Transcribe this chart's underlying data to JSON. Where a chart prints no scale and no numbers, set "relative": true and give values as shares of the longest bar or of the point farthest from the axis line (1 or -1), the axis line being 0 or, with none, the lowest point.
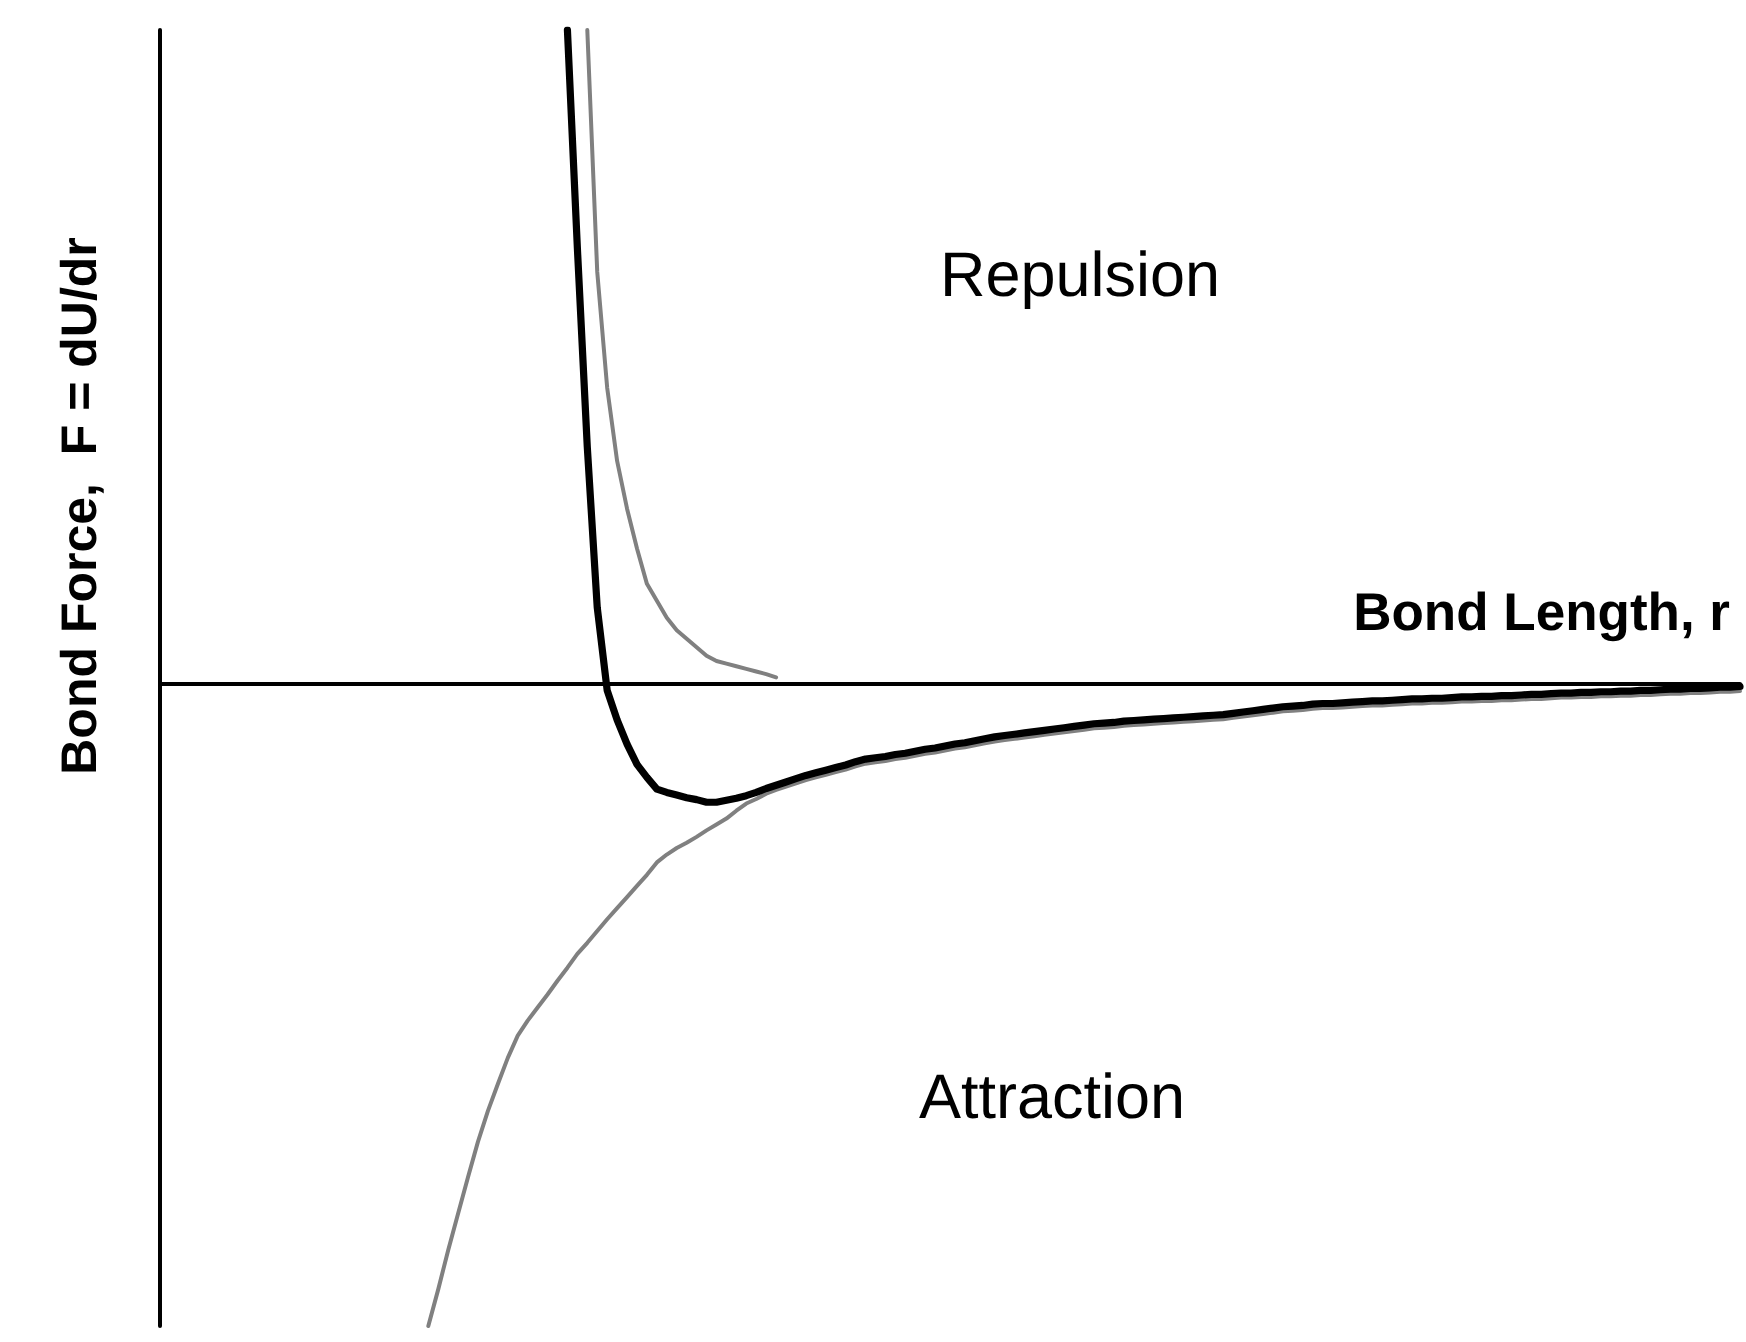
{
  "chart_data": {
    "type": "line",
    "relative": true,
    "xlabel": "Bond Length, r",
    "ylabel": "Bond Force,  F = dU/dr",
    "annotations": [
      "Repulsion",
      "Attraction"
    ],
    "categories": [
      null,
      null,
      null,
      null,
      null,
      null,
      null,
      null,
      null,
      null,
      null,
      null,
      null,
      null,
      null,
      null,
      null,
      null,
      null,
      null,
      null,
      null,
      null,
      null,
      null,
      null,
      null,
      null,
      null,
      null,
      null,
      null,
      null,
      null,
      null,
      null,
      null,
      null,
      null,
      null,
      null,
      null,
      null,
      null,
      null,
      null,
      null,
      null,
      null,
      null,
      null,
      null,
      null,
      null,
      null,
      null,
      null,
      null,
      null,
      null,
      null,
      null,
      null,
      null,
      null,
      null,
      null,
      null,
      null,
      null,
      null,
      null,
      null,
      null,
      null,
      null,
      null,
      null,
      null,
      null,
      null,
      null,
      null,
      null,
      null,
      null,
      null,
      null,
      null,
      null,
      null,
      null,
      null,
      null,
      null,
      null,
      null,
      null,
      null,
      null,
      null,
      null,
      null,
      null,
      null,
      null,
      null,
      null,
      null,
      null,
      null,
      null,
      null,
      null,
      null,
      null,
      null,
      null,
      null,
      null,
      null,
      null,
      null,
      null,
      null,
      null,
      null,
      null,
      null,
      null,
      null,
      null,
      null,
      null,
      null,
      null,
      null,
      null,
      null,
      null,
      null,
      null,
      null,
      null,
      null,
      null,
      null,
      null,
      null,
      null,
      null,
      null,
      null,
      null,
      null,
      null,
      null,
      null,
      null,
      null
    ],
    "series": [
      {
        "color": "#808080",
        "values": [
          null,
          null,
          null,
          null,
          null,
          null,
          null,
          null,
          null,
          null,
          null,
          null,
          null,
          null,
          null,
          null,
          null,
          null,
          null,
          null,
          null,
          null,
          null,
          null,
          null,
          null,
          null,
          -0.982,
          -0.926,
          -0.866,
          -0.81,
          -0.754,
          -0.7,
          -0.653,
          -0.612,
          -0.572,
          -0.538,
          -0.515,
          -0.495,
          -0.475,
          -0.454,
          -0.434,
          -0.413,
          -0.396,
          -0.378,
          -0.36,
          -0.343,
          -0.326,
          -0.309,
          -0.292,
          -0.273,
          -0.261,
          -0.251,
          -0.243,
          -0.234,
          -0.224,
          -0.215,
          -0.206,
          -0.194,
          -0.183,
          -0.176,
          -0.168,
          -0.162,
          -0.157,
          -0.152,
          -0.147,
          -0.143,
          -0.139,
          -0.135,
          -0.131,
          -0.126,
          -0.122,
          -0.12,
          -0.118,
          -0.115,
          -0.113,
          -0.11,
          -0.107,
          -0.105,
          -0.102,
          -0.099,
          -0.097,
          -0.094,
          -0.091,
          -0.088,
          -0.086,
          -0.084,
          -0.082,
          -0.08,
          -0.078,
          -0.076,
          -0.074,
          -0.072,
          -0.07,
          -0.068,
          -0.067,
          -0.066,
          -0.064,
          -0.063,
          -0.062,
          -0.061,
          -0.06,
          -0.059,
          -0.058,
          -0.057,
          -0.056,
          -0.055,
          -0.054,
          -0.052,
          -0.05,
          -0.048,
          -0.046,
          -0.044,
          -0.042,
          -0.041,
          -0.04,
          -0.038,
          -0.037,
          -0.037,
          -0.036,
          -0.035,
          -0.034,
          -0.033,
          -0.033,
          -0.032,
          -0.031,
          -0.03,
          -0.03,
          -0.029,
          -0.029,
          -0.028,
          -0.027,
          -0.027,
          -0.026,
          -0.026,
          -0.025,
          -0.025,
          -0.024,
          -0.023,
          -0.023,
          -0.022,
          -0.021,
          -0.021,
          -0.02,
          -0.02,
          -0.019,
          -0.019,
          -0.018,
          -0.018,
          -0.017,
          -0.017,
          -0.016,
          -0.015,
          -0.015,
          -0.014,
          -0.014,
          -0.013,
          -0.012,
          -0.012,
          -0.011
        ]
      },
      {
        "color": "#808080",
        "values": [
          null,
          null,
          null,
          null,
          null,
          null,
          null,
          null,
          null,
          null,
          null,
          null,
          null,
          null,
          null,
          null,
          null,
          null,
          null,
          null,
          null,
          null,
          null,
          null,
          null,
          null,
          null,
          null,
          null,
          null,
          null,
          null,
          null,
          null,
          null,
          null,
          null,
          null,
          null,
          null,
          null,
          null,
          null,
          1,
          0.63,
          0.453,
          0.341,
          0.268,
          0.207,
          0.153,
          0.127,
          0.101,
          0.082,
          0.069,
          0.056,
          0.043,
          0.035,
          0.031,
          0.027,
          0.023,
          0.019,
          0.015,
          0.01,
          null,
          null,
          null,
          null,
          null,
          null,
          null,
          null,
          null,
          null,
          null,
          null,
          null,
          null,
          null,
          null,
          null,
          null,
          null,
          null,
          null,
          null,
          null,
          null,
          null,
          null,
          null,
          null,
          null,
          null,
          null,
          null,
          null,
          null,
          null,
          null,
          null,
          null,
          null,
          null,
          null,
          null,
          null,
          null,
          null,
          null,
          null,
          null,
          null,
          null,
          null,
          null,
          null,
          null,
          null,
          null,
          null,
          null,
          null,
          null,
          null,
          null,
          null,
          null,
          null,
          null,
          null,
          null,
          null,
          null,
          null,
          null,
          null,
          null,
          null,
          null,
          null,
          null,
          null,
          null,
          null,
          null,
          null,
          null,
          null,
          null,
          null,
          null,
          null,
          null,
          null,
          null,
          null,
          null,
          null,
          null,
          null
        ]
      },
      {
        "color": "#000000",
        "values": [
          null,
          null,
          null,
          null,
          null,
          null,
          null,
          null,
          null,
          null,
          null,
          null,
          null,
          null,
          null,
          null,
          null,
          null,
          null,
          null,
          null,
          null,
          null,
          null,
          null,
          null,
          null,
          null,
          null,
          null,
          null,
          null,
          null,
          null,
          null,
          null,
          null,
          null,
          null,
          null,
          null,
          1,
          0.667,
          0.362,
          0.117,
          -0.01,
          -0.055,
          -0.092,
          -0.123,
          -0.143,
          -0.161,
          -0.166,
          -0.17,
          -0.174,
          -0.177,
          -0.181,
          -0.181,
          -0.178,
          -0.175,
          -0.171,
          -0.166,
          -0.16,
          -0.155,
          -0.15,
          -0.145,
          -0.14,
          -0.136,
          -0.132,
          -0.128,
          -0.124,
          -0.119,
          -0.115,
          -0.113,
          -0.111,
          -0.108,
          -0.106,
          -0.103,
          -0.1,
          -0.098,
          -0.095,
          -0.092,
          -0.09,
          -0.087,
          -0.084,
          -0.081,
          -0.079,
          -0.077,
          -0.075,
          -0.073,
          -0.071,
          -0.069,
          -0.067,
          -0.065,
          -0.063,
          -0.061,
          -0.06,
          -0.059,
          -0.057,
          -0.056,
          -0.055,
          -0.054,
          -0.053,
          -0.052,
          -0.051,
          -0.05,
          -0.049,
          -0.048,
          -0.047,
          -0.045,
          -0.043,
          -0.041,
          -0.039,
          -0.037,
          -0.035,
          -0.034,
          -0.033,
          -0.031,
          -0.03,
          -0.03,
          -0.029,
          -0.028,
          -0.027,
          -0.026,
          -0.026,
          -0.025,
          -0.024,
          -0.023,
          -0.023,
          -0.022,
          -0.022,
          -0.021,
          -0.02,
          -0.02,
          -0.019,
          -0.019,
          -0.018,
          -0.018,
          -0.017,
          -0.016,
          -0.016,
          -0.015,
          -0.014,
          -0.014,
          -0.013,
          -0.013,
          -0.012,
          -0.012,
          -0.011,
          -0.011,
          -0.01,
          -0.01,
          -0.009,
          -0.008,
          -0.008,
          -0.007,
          -0.007,
          -0.006,
          -0.005,
          -0.005,
          -0.004
        ]
      }
    ]
  }
}
